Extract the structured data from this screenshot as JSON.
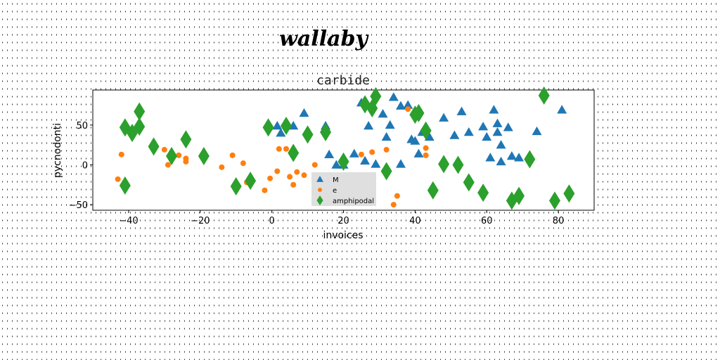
{
  "figure": {
    "title": "wallaby"
  },
  "chart_data": {
    "type": "scatter",
    "title": "carbide",
    "xlabel": "invoices",
    "ylabel": "pycnodonti",
    "xlim": [
      -50,
      90
    ],
    "ylim": [
      -57,
      94
    ],
    "xticks": [
      -40,
      -20,
      0,
      20,
      40,
      60,
      80
    ],
    "yticks": [
      -50,
      0,
      50
    ],
    "grid": false,
    "legend_position": "lower-center",
    "series": [
      {
        "name": "M",
        "marker": "triangle",
        "color": "#1f77b4",
        "points": [
          [
            1.5,
            49
          ],
          [
            2.5,
            40
          ],
          [
            4,
            53
          ],
          [
            6,
            49
          ],
          [
            9,
            65
          ],
          [
            15,
            49
          ],
          [
            16,
            13
          ],
          [
            20,
            0
          ],
          [
            25,
            78
          ],
          [
            26,
            5
          ],
          [
            27,
            49
          ],
          [
            29,
            1
          ],
          [
            31,
            64
          ],
          [
            32,
            35
          ],
          [
            33,
            50
          ],
          [
            34,
            85
          ],
          [
            36,
            74
          ],
          [
            38,
            75
          ],
          [
            39,
            32
          ],
          [
            40,
            30
          ],
          [
            41,
            14
          ],
          [
            42,
            41
          ],
          [
            44,
            35
          ],
          [
            48,
            59
          ],
          [
            51,
            37
          ],
          [
            53,
            67
          ],
          [
            55,
            41
          ],
          [
            59,
            48
          ],
          [
            60,
            35
          ],
          [
            61,
            9
          ],
          [
            62,
            69
          ],
          [
            63,
            41
          ],
          [
            63,
            52
          ],
          [
            64,
            4
          ],
          [
            64,
            25
          ],
          [
            66,
            47
          ],
          [
            67,
            11
          ],
          [
            69,
            9
          ],
          [
            74,
            42
          ],
          [
            81,
            69
          ],
          [
            18,
            0
          ],
          [
            23,
            14
          ],
          [
            36,
            1
          ]
        ]
      },
      {
        "name": "e",
        "marker": "circle",
        "color": "#ff7f0e",
        "points": [
          [
            -43,
            -18
          ],
          [
            -42,
            13
          ],
          [
            -30,
            19
          ],
          [
            -29,
            0
          ],
          [
            -26,
            12
          ],
          [
            -24,
            4
          ],
          [
            -24,
            8
          ],
          [
            -14,
            -3
          ],
          [
            -11,
            12
          ],
          [
            -8,
            2
          ],
          [
            -7,
            -22
          ],
          [
            -2,
            -32
          ],
          [
            -0.5,
            -17
          ],
          [
            1.5,
            -8
          ],
          [
            2,
            20
          ],
          [
            4,
            20
          ],
          [
            5,
            -15
          ],
          [
            6,
            -25
          ],
          [
            7,
            -9
          ],
          [
            9,
            -13
          ],
          [
            12,
            0
          ],
          [
            25,
            13
          ],
          [
            28,
            16
          ],
          [
            32,
            19
          ],
          [
            34,
            -50
          ],
          [
            35,
            -39
          ],
          [
            38,
            70
          ],
          [
            43,
            12
          ],
          [
            43,
            21
          ]
        ]
      },
      {
        "name": "amphipodal",
        "marker": "diamond",
        "color": "#2ca02c",
        "points": [
          [
            -41,
            47
          ],
          [
            -41,
            -26
          ],
          [
            -39,
            40
          ],
          [
            -37,
            67
          ],
          [
            -37,
            48
          ],
          [
            -33,
            23
          ],
          [
            -28,
            11
          ],
          [
            -24,
            32
          ],
          [
            -19,
            11
          ],
          [
            -10,
            -27
          ],
          [
            -6,
            -20
          ],
          [
            -1,
            47
          ],
          [
            4,
            49
          ],
          [
            6,
            15
          ],
          [
            10,
            38
          ],
          [
            15,
            41
          ],
          [
            20,
            4
          ],
          [
            26,
            76
          ],
          [
            28,
            71
          ],
          [
            29,
            86
          ],
          [
            32,
            -8
          ],
          [
            40,
            63
          ],
          [
            41,
            65
          ],
          [
            43,
            43
          ],
          [
            48,
            1
          ],
          [
            52,
            0
          ],
          [
            55,
            -22
          ],
          [
            59,
            -35
          ],
          [
            67,
            -45
          ],
          [
            69,
            -39
          ],
          [
            72,
            7
          ],
          [
            76,
            87
          ],
          [
            79,
            -45
          ],
          [
            83,
            -36
          ],
          [
            45,
            -32
          ]
        ]
      }
    ]
  }
}
